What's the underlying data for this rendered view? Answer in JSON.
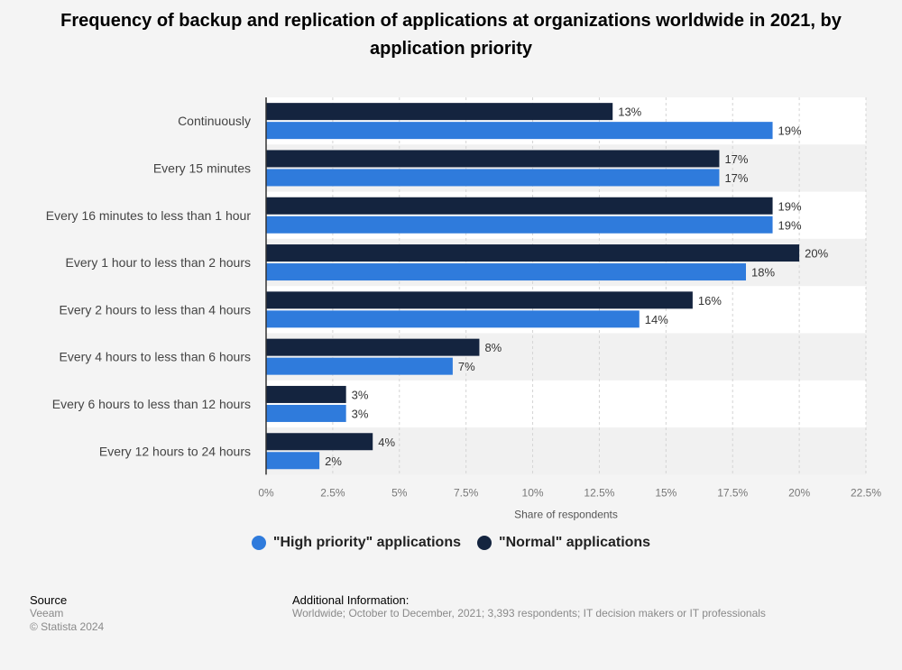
{
  "title": "Frequency of backup and replication of applications at organizations worldwide in 2021, by application priority",
  "legend": [
    {
      "label": "\"High priority\" applications",
      "color": "#2f7bdc"
    },
    {
      "label": "\"Normal\" applications",
      "color": "#14243f"
    }
  ],
  "source": {
    "heading": "Source",
    "line1": "Veeam",
    "line2": "© Statista 2024"
  },
  "additional": {
    "heading": "Additional Information:",
    "text": "Worldwide; October to December, 2021; 3,393 respondents; IT decision makers or IT professionals"
  },
  "chart_data": {
    "type": "bar",
    "orientation": "horizontal",
    "categories": [
      "Continuously",
      "Every 15 minutes",
      "Every 16 minutes to less than 1 hour",
      "Every 1 hour to less than 2 hours",
      "Every 2 hours to less than 4 hours",
      "Every 4 hours to less than 6 hours",
      "Every 6 hours to less than 12 hours",
      "Every 12 hours to 24 hours"
    ],
    "series": [
      {
        "name": "\"Normal\" applications",
        "color": "#14243f",
        "values": [
          13,
          17,
          19,
          20,
          16,
          8,
          3,
          4
        ]
      },
      {
        "name": "\"High priority\" applications",
        "color": "#2f7bdc",
        "values": [
          19,
          17,
          19,
          18,
          14,
          7,
          3,
          2
        ]
      }
    ],
    "xlabel": "Share of respondents",
    "ylabel": "",
    "xlim": [
      0,
      22.5
    ],
    "ticks": [
      "0%",
      "2.5%",
      "5%",
      "7.5%",
      "10%",
      "12.5%",
      "15%",
      "17.5%",
      "20%",
      "22.5%"
    ],
    "value_suffix": "%",
    "grid": true
  }
}
